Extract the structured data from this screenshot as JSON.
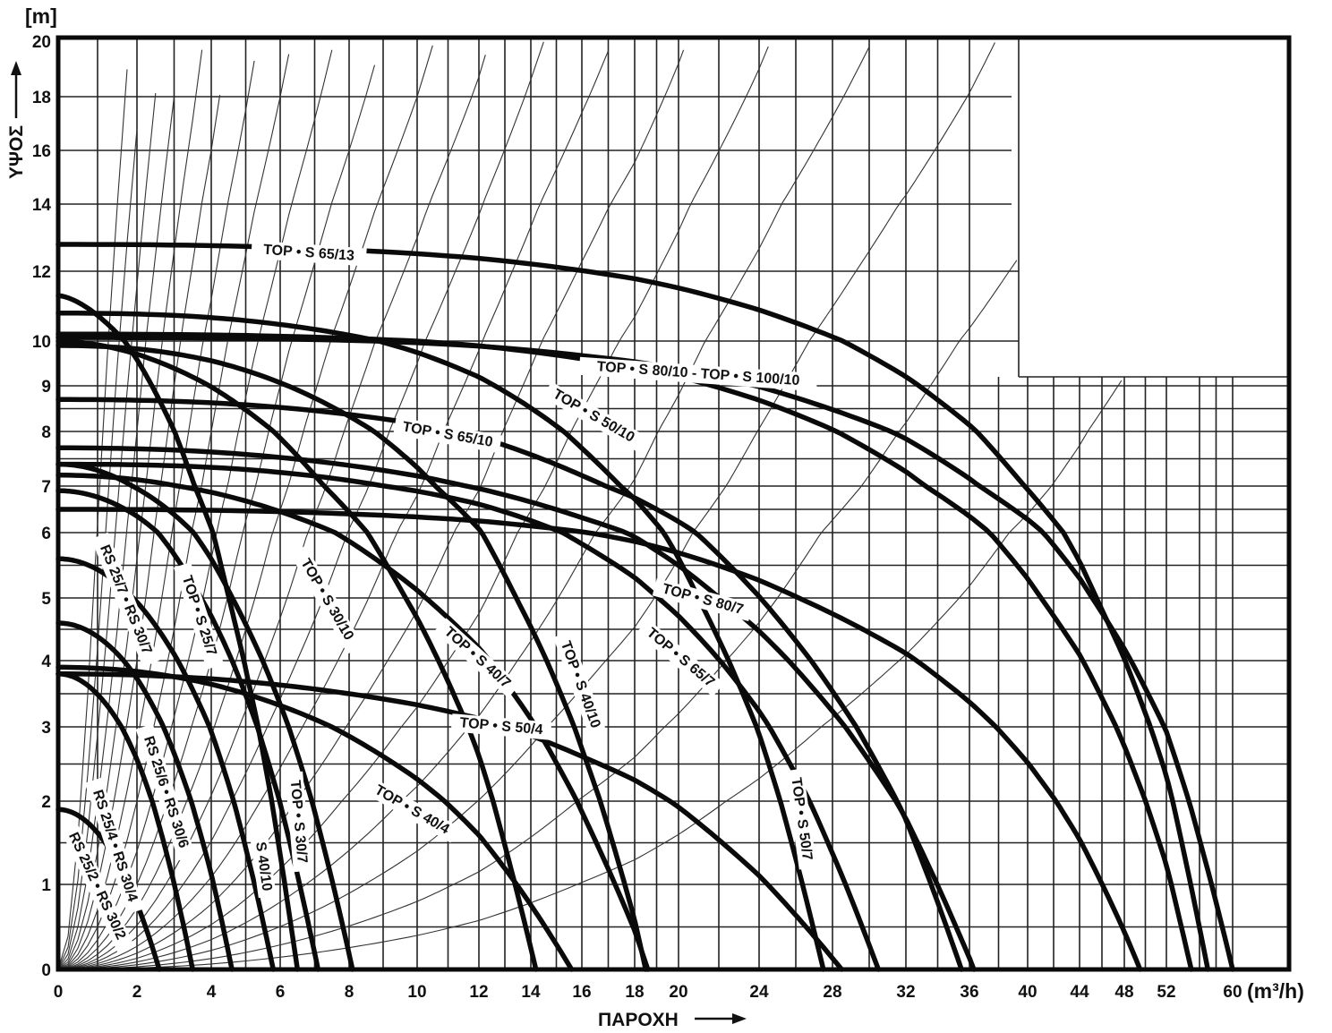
{
  "chart_data": {
    "type": "line",
    "title": "",
    "xlabel": "ΠΑΡΟΧΗ",
    "x_unit_label": "(m³/h)",
    "ylabel": "ΥΨΟΣ",
    "y_unit_label": "[m]",
    "x_tick_labels": [
      "0",
      "2",
      "4",
      "6",
      "8",
      "10",
      "12",
      "14",
      "16",
      "18",
      "20",
      "24",
      "28",
      "32",
      "36",
      "40",
      "44",
      "48",
      "52",
      "60"
    ],
    "y_tick_labels": [
      "0",
      "1",
      "2",
      "3",
      "4",
      "5",
      "6",
      "7",
      "8",
      "9",
      "10",
      "12",
      "14",
      "16",
      "18",
      "20"
    ],
    "xlim": [
      0,
      60
    ],
    "ylim": [
      0,
      20
    ],
    "scale": "logarithmic grid (log-log style)",
    "grid": true,
    "series": [
      {
        "name": "RS 25/2 • RS 30/2",
        "shutoff_head": 1.9,
        "max_flow": 2.6
      },
      {
        "name": "RS 25/4 • RS 30/4",
        "shutoff_head": 3.8,
        "max_flow": 3.5
      },
      {
        "name": "RS 25/6 • RS 30/6",
        "shutoff_head": 4.6,
        "max_flow": 4.6
      },
      {
        "name": "RS 25/7 • RS 30/7",
        "shutoff_head": 5.6,
        "max_flow": 5.8
      },
      {
        "name": "TOP • S 25/7",
        "shutoff_head": 6.9,
        "max_flow": 7.1
      },
      {
        "name": "S 40/10",
        "shutoff_head": 11.3,
        "max_flow": 6.5
      },
      {
        "name": "TOP • S 30/7",
        "shutoff_head": 7.4,
        "max_flow": 8.1
      },
      {
        "name": "TOP • S 30/10",
        "shutoff_head": 10.0,
        "max_flow": 14.2
      },
      {
        "name": "TOP • S 40/4",
        "shutoff_head": 3.9,
        "max_flow": 15.6
      },
      {
        "name": "TOP • S 50/4",
        "shutoff_head": 3.8,
        "max_flow": 28.5
      },
      {
        "name": "TOP • S 40/7",
        "shutoff_head": 7.2,
        "max_flow": 18.6
      },
      {
        "name": "TOP • S 40/10",
        "shutoff_head": 9.9,
        "max_flow": 18.5
      },
      {
        "name": "TOP • S 65/7",
        "shutoff_head": 7.7,
        "max_flow": 36.3
      },
      {
        "name": "TOP • S 50/7",
        "shutoff_head": 7.4,
        "max_flow": 30.5
      },
      {
        "name": "TOP • S 80/7",
        "shutoff_head": 6.5,
        "max_flow": 49.5
      },
      {
        "name": "TOP • S 65/10",
        "shutoff_head": 8.7,
        "max_flow": 35.5
      },
      {
        "name": "TOP • S 50/10",
        "shutoff_head": 10.8,
        "max_flow": 27.5
      },
      {
        "name": "TOP • S 80/10",
        "shutoff_head": 10.2,
        "max_flow": 55.0
      },
      {
        "name": "TOP • S 100/10",
        "shutoff_head": 10.1,
        "max_flow": 60.0
      },
      {
        "name": "TOP • S 65/13",
        "shutoff_head": 12.8,
        "max_flow": 57.0
      }
    ],
    "labels": [
      {
        "text": "TOP • S  65/13"
      },
      {
        "text": "TOP • S 80/10 - TOP • S 100/10"
      },
      {
        "text": "TOP • S 50/10"
      },
      {
        "text": "TOP • S 65/10"
      },
      {
        "text": "TOP • S 80/7"
      },
      {
        "text": "TOP • S 65/7"
      },
      {
        "text": "TOP • S 50/7"
      },
      {
        "text": "TOP • S 40/10"
      },
      {
        "text": "TOP • S 40/7"
      },
      {
        "text": "TOP • S 50/4"
      },
      {
        "text": "TOP • S 40/4"
      },
      {
        "text": "TOP • S  30/10"
      },
      {
        "text": "TOP • S 30/7"
      },
      {
        "text": "S 40/10"
      },
      {
        "text": "TOP • S  25/7"
      },
      {
        "text": "RS 25/7 • RS 30/7"
      },
      {
        "text": "RS 25/6 • RS 30/6"
      },
      {
        "text": "RS 25/4 • RS 30/4"
      },
      {
        "text": "RS 25/2 • RS 30/2"
      }
    ]
  }
}
